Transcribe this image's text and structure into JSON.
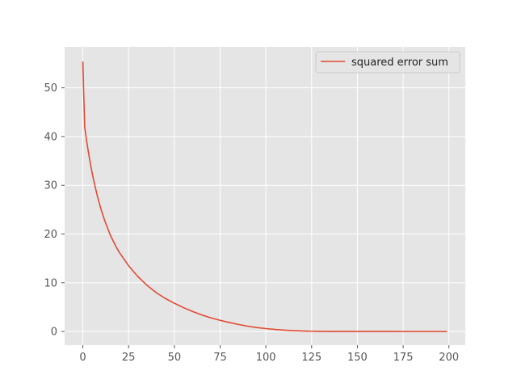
{
  "chart_data": {
    "type": "line",
    "title": "",
    "xlabel": "",
    "ylabel": "",
    "xlim": [
      -9.95,
      208.95
    ],
    "ylim": [
      -2.8,
      58.4
    ],
    "xticks": [
      0,
      25,
      50,
      75,
      100,
      125,
      150,
      175,
      200
    ],
    "yticks": [
      0,
      10,
      20,
      30,
      40,
      50
    ],
    "grid": true,
    "legend_position": "top-right",
    "series": [
      {
        "name": "squared error sum",
        "color": "#E24A33",
        "x": [
          0,
          1,
          2,
          3,
          4,
          5,
          6,
          8,
          10,
          12,
          15,
          18,
          20,
          25,
          30,
          35,
          40,
          45,
          50,
          55,
          60,
          65,
          70,
          75,
          80,
          85,
          90,
          95,
          100,
          105,
          110,
          115,
          120,
          125,
          130,
          135,
          140,
          145,
          150,
          160,
          170,
          180,
          190,
          199
        ],
        "y": [
          55.4,
          42.0,
          39.3,
          36.9,
          34.7,
          32.7,
          30.9,
          27.7,
          25.0,
          22.7,
          19.8,
          17.5,
          16.2,
          13.5,
          11.3,
          9.5,
          8.0,
          6.8,
          5.8,
          4.9,
          4.1,
          3.4,
          2.8,
          2.3,
          1.85,
          1.45,
          1.1,
          0.82,
          0.6,
          0.42,
          0.28,
          0.18,
          0.11,
          0.06,
          0.03,
          0.015,
          0.008,
          0.004,
          0.002,
          0.001,
          0.0005,
          0.0002,
          0.0001,
          0.0
        ]
      }
    ]
  }
}
